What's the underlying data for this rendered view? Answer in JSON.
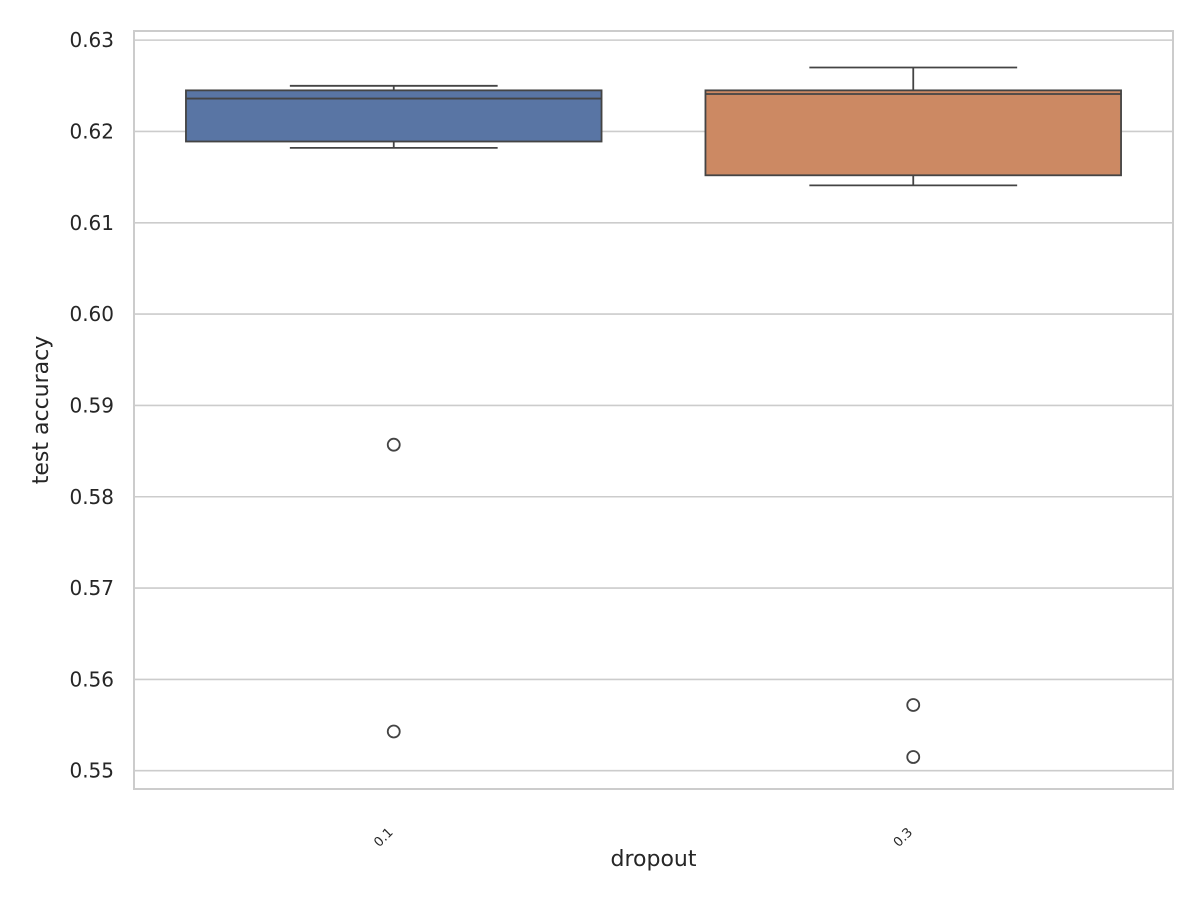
{
  "chart_data": {
    "type": "box",
    "xlabel": "dropout",
    "ylabel": "test accuracy",
    "categories": [
      "0.1",
      "0.3"
    ],
    "ylim": [
      0.548,
      0.631
    ],
    "yticks": [
      "0.55",
      "0.56",
      "0.57",
      "0.58",
      "0.59",
      "0.60",
      "0.61",
      "0.62",
      "0.63"
    ],
    "grid": true,
    "boxes": [
      {
        "category": "0.1",
        "color": "#5975a4",
        "whisker_low": 0.6182,
        "q1": 0.6189,
        "median": 0.6236,
        "q3": 0.6245,
        "whisker_high": 0.625,
        "outliers": [
          0.5857,
          0.5543
        ]
      },
      {
        "category": "0.3",
        "color": "#cc8963",
        "whisker_low": 0.6141,
        "q1": 0.6152,
        "median": 0.6241,
        "q3": 0.6245,
        "whisker_high": 0.627,
        "outliers": [
          0.5572,
          0.5515
        ]
      }
    ]
  }
}
